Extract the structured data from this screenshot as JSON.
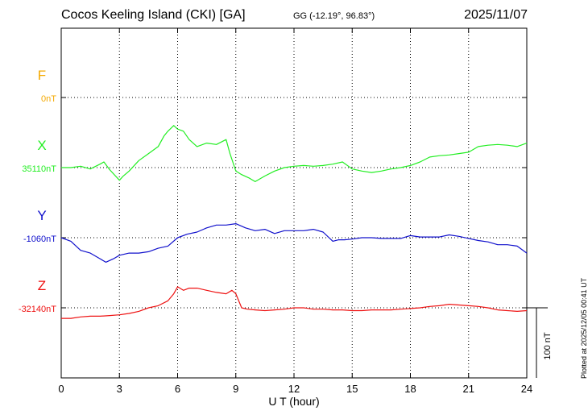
{
  "header": {
    "title": "Cocos Keeling Island (CKI)  [GA]",
    "coordinates": "GG (-12.19°,  96.83°)",
    "date": "2025/11/07",
    "plotted_note": "Plotted at 2025/12/05 00:41 UT"
  },
  "chart_data": {
    "type": "line",
    "title": "Cocos Keeling Island (CKI)  [GA]",
    "xlabel": "U T (hour)",
    "ylabel": "",
    "xlim": [
      0,
      24
    ],
    "xticks": [
      0,
      3,
      6,
      9,
      12,
      15,
      18,
      21,
      24
    ],
    "grid": true,
    "scale_bar": {
      "label": "100 nT",
      "nT": 100
    },
    "units_per_division_nT": 100,
    "series": [
      {
        "name": "F",
        "baseline_label": "0nT",
        "color": "#f4a900",
        "values": []
      },
      {
        "name": "X",
        "baseline_label": "35110nT",
        "color": "#22ee22",
        "x": [
          0,
          0.5,
          1,
          1.5,
          2,
          2.2,
          2.5,
          3,
          3.2,
          3.5,
          4,
          4.5,
          5,
          5.3,
          5.5,
          5.8,
          6,
          6.3,
          6.6,
          7,
          7.5,
          8,
          8.5,
          8.7,
          9,
          9.3,
          9.7,
          10,
          10.5,
          11,
          11.5,
          12,
          12.5,
          13,
          13.5,
          14,
          14.5,
          15,
          15.5,
          16,
          16.5,
          17,
          17.5,
          18,
          18.5,
          19,
          19.5,
          20,
          20.5,
          21,
          21.5,
          22,
          22.5,
          23,
          23.5,
          24
        ],
        "values": [
          0,
          0,
          2,
          -2,
          5,
          8,
          -3,
          -18,
          -12,
          -5,
          10,
          20,
          30,
          45,
          52,
          60,
          55,
          52,
          40,
          30,
          35,
          33,
          40,
          20,
          -5,
          -10,
          -15,
          -20,
          -12,
          -5,
          0,
          2,
          3,
          2,
          3,
          5,
          8,
          -2,
          -5,
          -7,
          -5,
          -2,
          0,
          3,
          8,
          15,
          17,
          18,
          20,
          22,
          30,
          32,
          33,
          32,
          30,
          35
        ]
      },
      {
        "name": "Y",
        "baseline_label": "-1060nT",
        "color": "#1010cc",
        "x": [
          0,
          0.5,
          1,
          1.5,
          2,
          2.3,
          2.7,
          3,
          3.5,
          4,
          4.5,
          5,
          5.5,
          6,
          6.5,
          7,
          7.5,
          8,
          8.5,
          9,
          9.5,
          10,
          10.5,
          11,
          11.5,
          12,
          12.5,
          13,
          13.5,
          14,
          14.3,
          14.6,
          15,
          15.5,
          16,
          16.5,
          17,
          17.5,
          18,
          18.5,
          19,
          19.5,
          20,
          20.5,
          21,
          21.5,
          22,
          22.5,
          23,
          23.5,
          24
        ],
        "values": [
          0,
          -5,
          -18,
          -22,
          -30,
          -35,
          -30,
          -25,
          -22,
          -22,
          -20,
          -15,
          -12,
          0,
          5,
          8,
          14,
          18,
          18,
          20,
          14,
          10,
          12,
          6,
          10,
          10,
          10,
          12,
          8,
          -5,
          -3,
          -3,
          -2,
          0,
          0,
          -1,
          -1,
          -1,
          3,
          1,
          1,
          1,
          4,
          2,
          -1,
          -4,
          -6,
          -10,
          -10,
          -12,
          -22
        ]
      },
      {
        "name": "Z",
        "baseline_label": "-32140nT",
        "color": "#ee1111",
        "x": [
          0,
          0.5,
          1,
          1.5,
          2,
          2.5,
          3,
          3.5,
          4,
          4.5,
          5,
          5.5,
          5.8,
          6,
          6.3,
          6.6,
          7,
          7.5,
          8,
          8.5,
          8.8,
          9,
          9.3,
          9.6,
          10,
          10.5,
          11,
          11.5,
          12,
          12.5,
          13,
          13.5,
          14,
          14.5,
          15,
          15.5,
          16,
          16.5,
          17,
          17.5,
          18,
          18.5,
          19,
          19.5,
          20,
          20.5,
          21,
          21.5,
          22,
          22.5,
          23,
          23.5,
          24
        ],
        "values": [
          -15,
          -15,
          -13,
          -12,
          -12,
          -11,
          -10,
          -8,
          -5,
          0,
          3,
          10,
          20,
          30,
          25,
          28,
          28,
          25,
          22,
          20,
          25,
          20,
          0,
          -2,
          -3,
          -4,
          -3,
          -2,
          0,
          0,
          -2,
          -2,
          -3,
          -3,
          -4,
          -4,
          -3,
          -3,
          -3,
          -2,
          -1,
          0,
          2,
          3,
          5,
          4,
          3,
          2,
          0,
          -3,
          -4,
          -5,
          -4
        ]
      }
    ]
  }
}
